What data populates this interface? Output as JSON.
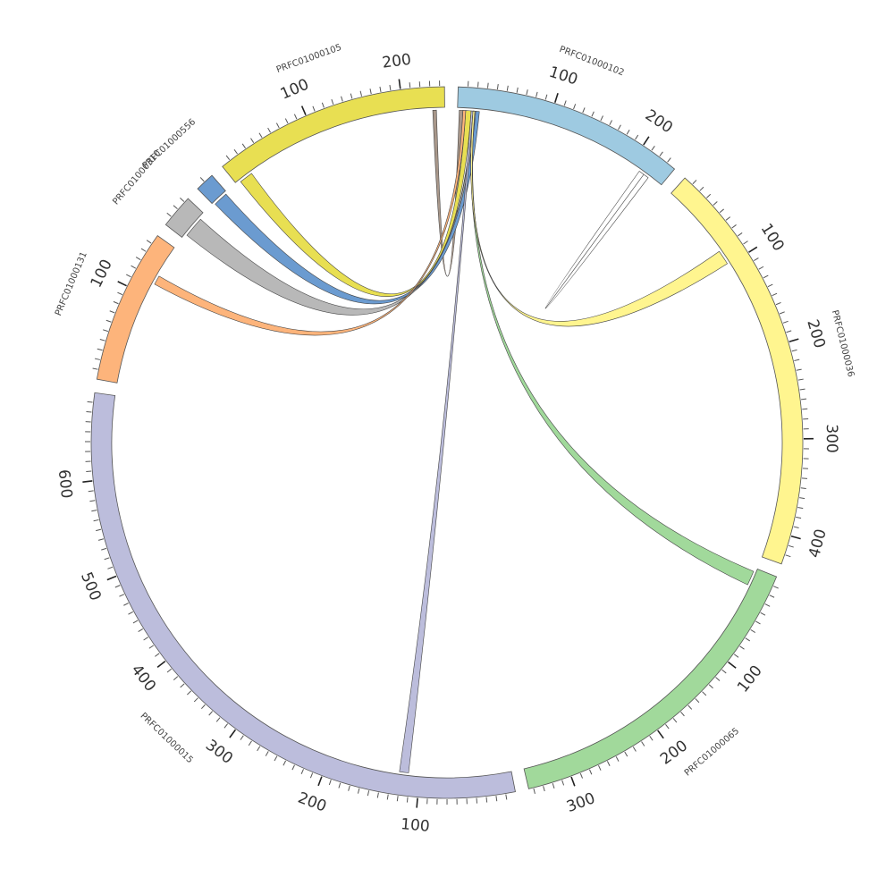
{
  "segments": [
    {
      "name": "PRFC01000102",
      "color": "#9ecae1",
      "length": 240,
      "ticks": [
        {
          "value": 100,
          "label": "100"
        },
        {
          "value": 200,
          "label": "200"
        }
      ]
    },
    {
      "name": "PRFC01000036",
      "color": "#fff58f",
      "length": 430,
      "ticks": [
        {
          "value": 100,
          "label": "100"
        },
        {
          "value": 200,
          "label": "200"
        },
        {
          "value": 300,
          "label": "300"
        },
        {
          "value": 400,
          "label": "400"
        }
      ]
    },
    {
      "name": "PRFC01000065",
      "color": "#a1d99b",
      "length": 345,
      "ticks": [
        {
          "value": 100,
          "label": "100"
        },
        {
          "value": 200,
          "label": "200"
        },
        {
          "value": 300,
          "label": "300"
        }
      ]
    },
    {
      "name": "PRFC01000015",
      "color": "#bcbddc",
      "length": 690,
      "ticks": [
        {
          "value": 100,
          "label": "100"
        },
        {
          "value": 200,
          "label": "200"
        },
        {
          "value": 300,
          "label": "300"
        },
        {
          "value": 400,
          "label": "400"
        },
        {
          "value": 500,
          "label": "500"
        },
        {
          "value": 600,
          "label": "600"
        }
      ]
    },
    {
      "name": "PRFC01000131",
      "color": "#fdb47b",
      "length": 160,
      "ticks": [
        {
          "value": 100,
          "label": "100"
        }
      ]
    },
    {
      "name": "PRFC01000310",
      "color": "#b8b8b8",
      "length": 35,
      "ticks": []
    },
    {
      "name": "PRFC01000556",
      "color": "#6b9bd0",
      "length": 20,
      "ticks": []
    },
    {
      "name": "PRFC01000105",
      "color": "#e8df52",
      "length": 245,
      "ticks": [
        {
          "value": 100,
          "label": "100"
        },
        {
          "value": 200,
          "label": "200"
        }
      ]
    }
  ],
  "links": [
    {
      "from": "PRFC01000102",
      "from_range": [
        2,
        6
      ],
      "to": "PRFC01000105",
      "to_range": [
        232,
        236
      ],
      "color": "#a8978a"
    },
    {
      "from": "PRFC01000102",
      "from_range": [
        9,
        15
      ],
      "to": "PRFC01000105",
      "to_range": [
        5,
        20
      ],
      "color": "#e8df52"
    },
    {
      "from": "PRFC01000102",
      "from_range": [
        17,
        24
      ],
      "to": "PRFC01000556",
      "to_range": [
        2,
        18
      ],
      "color": "#6b9bd0"
    },
    {
      "from": "PRFC01000102",
      "from_range": [
        18,
        20
      ],
      "to": "PRFC01000310",
      "to_range": [
        5,
        28
      ],
      "color": "#b8b8b8"
    },
    {
      "from": "PRFC01000102",
      "from_range": [
        6,
        9
      ],
      "to": "PRFC01000131",
      "to_range": [
        115,
        125
      ],
      "color": "#fdb47b"
    },
    {
      "from": "PRFC01000102",
      "from_range": [
        15,
        17
      ],
      "to": "PRFC01000015",
      "to_range": [
        112,
        122
      ],
      "color": "#bcbddc"
    },
    {
      "from": "PRFC01000102",
      "from_range": [
        17,
        19
      ],
      "to": "PRFC01000065",
      "to_range": [
        4,
        20
      ],
      "color": "#a1d99b"
    },
    {
      "from": "PRFC01000102",
      "from_range": [
        17,
        19
      ],
      "to": "PRFC01000036",
      "to_range": [
        82,
        98
      ],
      "color": "#fff58f"
    },
    {
      "from": "PRFC01000102",
      "from_range": [
        212,
        218
      ],
      "to": "PRFC01000102",
      "to_range": [
        218,
        224
      ],
      "color": "#ffffff"
    }
  ]
}
